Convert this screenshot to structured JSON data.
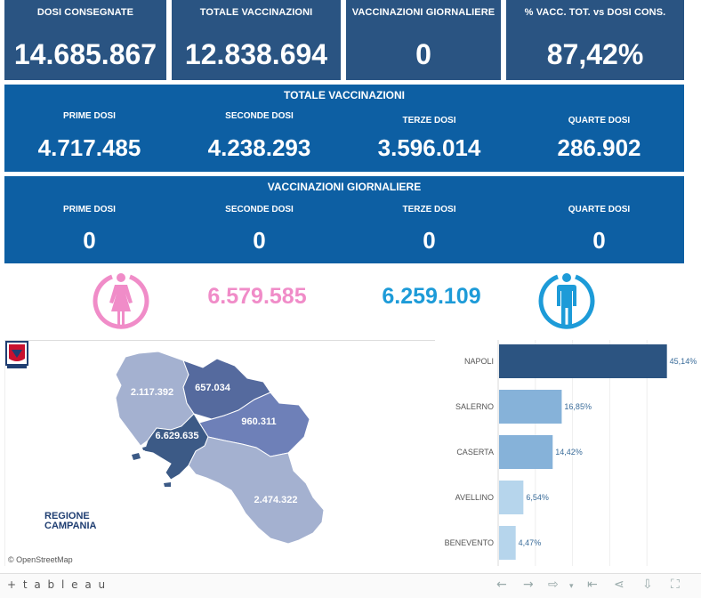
{
  "kpis": [
    {
      "title": "DOSI  CONSEGNATE",
      "value": "14.685.867"
    },
    {
      "title": "TOTALE VACCINAZIONI",
      "value": "12.838.694"
    },
    {
      "title": "VACCINAZIONI GIORNALIERE",
      "value": "0"
    },
    {
      "title": "% VACC. TOT. vs DOSI CONS.",
      "value": "87,42%"
    }
  ],
  "totale": {
    "title": "TOTALE VACCINAZIONI",
    "cells": [
      {
        "label": "PRIME DOSI",
        "value": "4.717.485"
      },
      {
        "label": "SECONDE DOSI",
        "value": "4.238.293"
      },
      {
        "label": "TERZE DOSI",
        "value": "3.596.014"
      },
      {
        "label": "QUARTE DOSI",
        "value": "286.902"
      }
    ]
  },
  "giornaliere": {
    "title": "VACCINAZIONI GIORNALIERE",
    "cells": [
      {
        "label": "PRIME DOSI",
        "value": "0"
      },
      {
        "label": "SECONDE DOSI",
        "value": "0"
      },
      {
        "label": "TERZE DOSI",
        "value": "0"
      },
      {
        "label": "QUARTE DOSI",
        "value": "0"
      }
    ]
  },
  "gender": {
    "female_value": "6.579.585",
    "male_value": "6.259.109",
    "female_color": "#f08cc8",
    "male_color": "#1d9bd8",
    "female_icon": "female-icon",
    "male_icon": "male-icon"
  },
  "map": {
    "labels": {
      "caserta": "2.117.392",
      "benevento": "657.034",
      "avellino": "960.311",
      "napoli": "6.629.635",
      "salerno": "2.474.322"
    },
    "attribution": "© OpenStreetMap",
    "logo_line1": "REGIONE",
    "logo_line2": "CAMPANIA"
  },
  "chart_data": {
    "type": "bar",
    "orientation": "horizontal",
    "categories": [
      "NAPOLI",
      "SALERNO",
      "CASERTA",
      "AVELLINO",
      "BENEVENTO"
    ],
    "values": [
      45.14,
      16.85,
      14.42,
      6.54,
      4.47
    ],
    "value_labels": [
      "45,14%",
      "16,85%",
      "14,42%",
      "6,54%",
      "4,47%"
    ],
    "colors": [
      "#2c5481",
      "#86b2d9",
      "#86b2d9",
      "#b6d5ec",
      "#b6d5ec"
    ],
    "xlim": [
      0,
      50
    ],
    "grid": true
  },
  "footer": {
    "brand": "+ t a b l e a u"
  }
}
